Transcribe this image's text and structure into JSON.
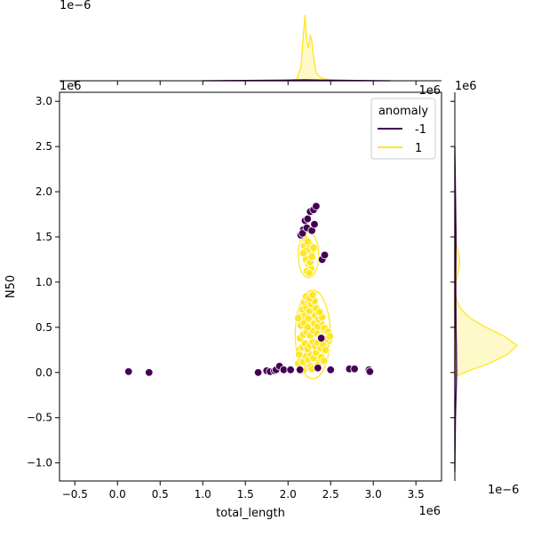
{
  "chart_data": {
    "type": "scatter",
    "title": "",
    "xlabel": "total_length",
    "ylabel": "N50",
    "x_multiplier": "1e6",
    "y_multiplier": "1e6",
    "xlim": [
      -0.68,
      3.8
    ],
    "ylim": [
      -1.2,
      3.1
    ],
    "x_ticks": [
      "−0.5",
      "0.0",
      "0.5",
      "1.0",
      "1.5",
      "2.0",
      "2.5",
      "3.0",
      "3.5"
    ],
    "x_tick_values": [
      -0.5,
      0.0,
      0.5,
      1.0,
      1.5,
      2.0,
      2.5,
      3.0,
      3.5
    ],
    "y_ticks": [
      "−1.0",
      "−0.5",
      "0.0",
      "0.5",
      "1.0",
      "1.5",
      "2.0",
      "2.5",
      "3.0"
    ],
    "y_tick_values": [
      -1.0,
      -0.5,
      0.0,
      0.5,
      1.0,
      1.5,
      2.0,
      2.5,
      3.0
    ],
    "top_marginal_multiplier": "1e−6",
    "right_marginal_multiplier": "1e−6",
    "legend": {
      "title": "anomaly",
      "position": "upper right"
    },
    "colors": {
      "anomaly_-1": "#440154",
      "anomaly_1": "#fde725"
    },
    "series": [
      {
        "name": "-1",
        "color": "#440154",
        "x": [
          0.13,
          0.37,
          1.65,
          1.75,
          1.79,
          1.84,
          1.86,
          1.9,
          1.95,
          2.03,
          2.15,
          2.18,
          2.2,
          2.23,
          2.26,
          2.3,
          2.33,
          2.17,
          2.22,
          2.28,
          2.31,
          2.4,
          2.43,
          2.14,
          2.35,
          2.39,
          2.5,
          2.72,
          2.78,
          2.95,
          2.96
        ],
        "y": [
          0.01,
          0.0,
          0.0,
          0.02,
          0.01,
          0.02,
          0.03,
          0.07,
          0.03,
          0.03,
          1.52,
          1.58,
          1.68,
          1.7,
          1.78,
          1.8,
          1.84,
          1.54,
          1.6,
          1.57,
          1.64,
          1.25,
          1.3,
          0.03,
          0.05,
          0.38,
          0.03,
          0.04,
          0.04,
          0.03,
          0.01
        ]
      },
      {
        "name": "1",
        "color": "#fde725",
        "x": [
          2.19,
          2.22,
          2.25,
          2.28,
          2.21,
          2.24,
          2.27,
          2.2,
          2.23,
          2.26,
          2.3,
          2.22,
          2.25,
          2.28,
          2.18,
          2.12,
          2.15,
          2.18,
          2.21,
          2.24,
          2.27,
          2.3,
          2.33,
          2.36,
          2.39,
          2.42,
          2.45,
          2.48,
          2.13,
          2.17,
          2.2,
          2.23,
          2.26,
          2.29,
          2.32,
          2.35,
          2.38,
          2.41,
          2.44,
          2.47,
          2.14,
          2.18,
          2.22,
          2.26,
          2.3,
          2.34,
          2.38,
          2.42,
          2.46,
          2.15,
          2.19,
          2.23,
          2.27,
          2.31,
          2.35,
          2.39,
          2.43,
          2.16,
          2.2,
          2.24,
          2.28,
          2.32,
          2.36,
          2.4,
          2.17,
          2.21,
          2.25,
          2.29,
          2.33,
          2.37,
          2.19,
          2.23,
          2.27,
          2.31,
          2.21,
          2.25,
          2.29,
          2.22,
          2.26,
          2.35,
          2.12,
          2.47,
          2.49,
          2.13,
          2.44,
          2.18,
          2.28
        ],
        "y": [
          1.4,
          1.35,
          1.42,
          1.3,
          1.25,
          1.2,
          1.15,
          1.48,
          1.45,
          1.22,
          1.38,
          1.12,
          1.1,
          1.28,
          1.32,
          0.1,
          0.15,
          0.12,
          0.18,
          0.14,
          0.2,
          0.16,
          0.22,
          0.11,
          0.17,
          0.13,
          0.3,
          0.35,
          0.25,
          0.28,
          0.32,
          0.26,
          0.3,
          0.34,
          0.29,
          0.33,
          0.27,
          0.31,
          0.4,
          0.44,
          0.38,
          0.42,
          0.45,
          0.41,
          0.46,
          0.43,
          0.39,
          0.47,
          0.37,
          0.52,
          0.55,
          0.5,
          0.58,
          0.54,
          0.51,
          0.56,
          0.49,
          0.62,
          0.65,
          0.6,
          0.66,
          0.63,
          0.59,
          0.61,
          0.7,
          0.72,
          0.68,
          0.74,
          0.71,
          0.67,
          0.78,
          0.8,
          0.76,
          0.79,
          0.84,
          0.82,
          0.86,
          0.05,
          0.07,
          0.08,
          0.6,
          0.45,
          0.4,
          0.2,
          0.25,
          0.02,
          0.04
        ]
      }
    ],
    "kde_top": {
      "series": [
        {
          "name": "1",
          "x": [
            1.9,
            2.1,
            2.15,
            2.18,
            2.2,
            2.22,
            2.24,
            2.26,
            2.28,
            2.3,
            2.33,
            2.38,
            2.45,
            2.6
          ],
          "density": [
            0.0,
            0.02,
            0.2,
            0.7,
            1.0,
            0.6,
            0.5,
            0.7,
            0.6,
            0.35,
            0.12,
            0.05,
            0.02,
            0.0
          ]
        },
        {
          "name": "-1",
          "x": [
            1.0,
            1.5,
            2.0,
            2.2,
            2.4,
            2.8,
            3.2
          ],
          "density": [
            0.0,
            0.005,
            0.01,
            0.015,
            0.01,
            0.005,
            0.0
          ]
        }
      ]
    },
    "kde_right": {
      "series": [
        {
          "name": "1",
          "y": [
            -0.05,
            0.0,
            0.1,
            0.2,
            0.3,
            0.4,
            0.5,
            0.6,
            0.7,
            0.8,
            0.9,
            1.0,
            1.1,
            1.2,
            1.3,
            1.4,
            1.5,
            1.6
          ],
          "density": [
            0.0,
            0.15,
            0.55,
            0.85,
            1.0,
            0.8,
            0.5,
            0.25,
            0.1,
            0.03,
            0.01,
            0.02,
            0.05,
            0.08,
            0.07,
            0.03,
            0.01,
            0.0
          ]
        },
        {
          "name": "-1",
          "y": [
            -1.1,
            -0.5,
            0.0,
            0.5,
            1.0,
            1.5,
            2.0,
            2.5
          ],
          "density": [
            0.0,
            0.01,
            0.03,
            0.02,
            0.015,
            0.02,
            0.01,
            0.0
          ]
        }
      ]
    }
  }
}
